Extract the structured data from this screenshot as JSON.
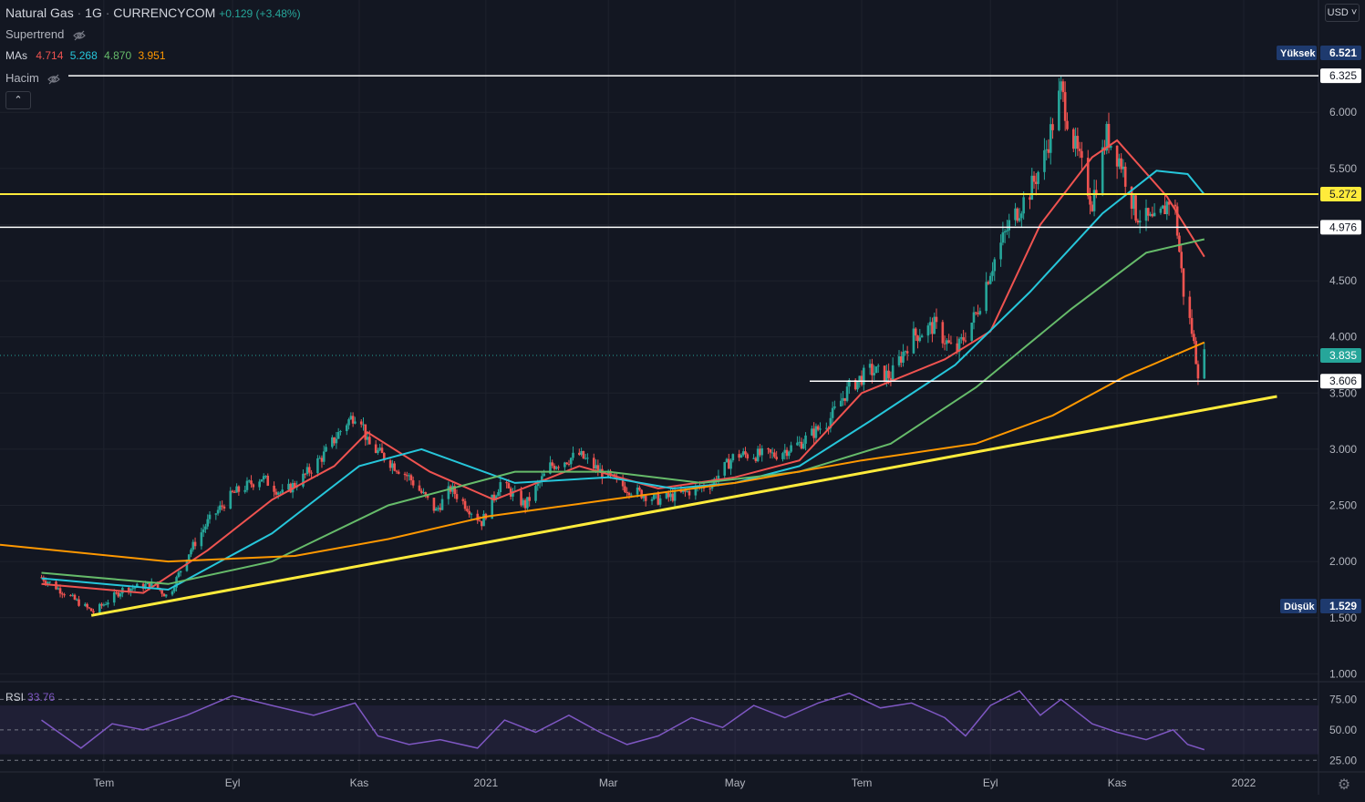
{
  "header": {
    "symbol": "Natural Gas",
    "interval": "1G",
    "exchange": "CURRENCYCOM",
    "change": "+0.129 (+3.48%)"
  },
  "indicators": {
    "supertrend_label": "Supertrend",
    "mas_label": "MAs",
    "mas_values": [
      "4.714",
      "5.268",
      "4.870",
      "3.951"
    ],
    "mas_colors": [
      "#ef5350",
      "#26c6da",
      "#66bb6a",
      "#ff9800"
    ],
    "volume_label": "Hacim",
    "rsi_label": "RSI",
    "rsi_value": "33.76"
  },
  "currency": "USD",
  "colors": {
    "up": "#26a69a",
    "down": "#ef5350",
    "trendline": "#ffeb3b",
    "rsi": "#7e57c2",
    "background": "#131722",
    "grid": "#1e222d"
  },
  "chart_data": {
    "type": "candlestick",
    "y_ticks": [
      1.0,
      1.5,
      2.0,
      2.5,
      3.0,
      3.5,
      4.0,
      4.5,
      5.0,
      5.5,
      6.0
    ],
    "y_tick_labels": [
      "1.000",
      "1.500",
      "2.000",
      "2.500",
      "3.000",
      "3.500",
      "4.000",
      "4.500",
      "5.000",
      "5.500",
      "6.000"
    ],
    "ylim": [
      0.93,
      7.0
    ],
    "x_labels": [
      "Tem",
      "Eyl",
      "Kas",
      "2021",
      "Mar",
      "May",
      "Tem",
      "Eyl",
      "Kas",
      "2022"
    ],
    "x_label_dates": [
      "2020-07-01",
      "2020-09-01",
      "2020-11-01",
      "2021-01-01",
      "2021-03-01",
      "2021-05-01",
      "2021-07-01",
      "2021-09-01",
      "2021-11-01",
      "2022-01-01"
    ],
    "xlim": [
      "2020-05-12",
      "2022-02-06"
    ],
    "price_series": [
      [
        "2020-06-01",
        1.86
      ],
      [
        "2020-06-20",
        1.62
      ],
      [
        "2020-06-26",
        1.55
      ],
      [
        "2020-07-10",
        1.75
      ],
      [
        "2020-07-25",
        1.8
      ],
      [
        "2020-08-01",
        1.68
      ],
      [
        "2020-08-10",
        2.05
      ],
      [
        "2020-08-20",
        2.35
      ],
      [
        "2020-09-01",
        2.6
      ],
      [
        "2020-09-15",
        2.75
      ],
      [
        "2020-09-25",
        2.6
      ],
      [
        "2020-10-05",
        2.75
      ],
      [
        "2020-10-15",
        2.95
      ],
      [
        "2020-10-25",
        3.22
      ],
      [
        "2020-11-01",
        3.35
      ],
      [
        "2020-11-05",
        3.05
      ],
      [
        "2020-11-15",
        2.9
      ],
      [
        "2020-11-25",
        2.75
      ],
      [
        "2020-12-08",
        2.45
      ],
      [
        "2020-12-15",
        2.65
      ],
      [
        "2020-12-30",
        2.35
      ],
      [
        "2021-01-08",
        2.7
      ],
      [
        "2021-01-20",
        2.5
      ],
      [
        "2021-02-01",
        2.85
      ],
      [
        "2021-02-15",
        2.95
      ],
      [
        "2021-02-25",
        2.8
      ],
      [
        "2021-03-10",
        2.65
      ],
      [
        "2021-03-25",
        2.55
      ],
      [
        "2021-04-05",
        2.6
      ],
      [
        "2021-04-20",
        2.7
      ],
      [
        "2021-05-01",
        2.95
      ],
      [
        "2021-05-20",
        2.95
      ],
      [
        "2021-06-01",
        3.05
      ],
      [
        "2021-06-15",
        3.25
      ],
      [
        "2021-06-25",
        3.55
      ],
      [
        "2021-07-05",
        3.7
      ],
      [
        "2021-07-15",
        3.65
      ],
      [
        "2021-07-25",
        4.0
      ],
      [
        "2021-08-05",
        4.1
      ],
      [
        "2021-08-15",
        3.85
      ],
      [
        "2021-08-25",
        4.2
      ],
      [
        "2021-09-01",
        4.6
      ],
      [
        "2021-09-10",
        5.0
      ],
      [
        "2021-09-20",
        5.3
      ],
      [
        "2021-09-27",
        5.6
      ],
      [
        "2021-10-05",
        6.2
      ],
      [
        "2021-10-10",
        5.8
      ],
      [
        "2021-10-20",
        5.2
      ],
      [
        "2021-10-27",
        5.8
      ],
      [
        "2021-11-03",
        5.55
      ],
      [
        "2021-11-10",
        5.1
      ],
      [
        "2021-11-20",
        5.0
      ],
      [
        "2021-11-28",
        5.3
      ],
      [
        "2021-12-03",
        4.4
      ],
      [
        "2021-12-07",
        4.05
      ],
      [
        "2021-12-10",
        3.7
      ],
      [
        "2021-12-13",
        3.835
      ]
    ],
    "moving_averages": [
      {
        "name": "4.714",
        "color": "#ef5350",
        "points": [
          [
            "2020-06-01",
            1.8
          ],
          [
            "2020-07-20",
            1.72
          ],
          [
            "2020-08-20",
            2.1
          ],
          [
            "2020-09-20",
            2.55
          ],
          [
            "2020-10-20",
            2.85
          ],
          [
            "2020-11-05",
            3.15
          ],
          [
            "2020-12-05",
            2.8
          ],
          [
            "2021-01-05",
            2.55
          ],
          [
            "2021-02-15",
            2.85
          ],
          [
            "2021-03-25",
            2.65
          ],
          [
            "2021-05-01",
            2.75
          ],
          [
            "2021-06-01",
            2.9
          ],
          [
            "2021-07-01",
            3.5
          ],
          [
            "2021-08-10",
            3.8
          ],
          [
            "2021-09-01",
            4.05
          ],
          [
            "2021-09-25",
            5.0
          ],
          [
            "2021-10-20",
            5.6
          ],
          [
            "2021-11-01",
            5.75
          ],
          [
            "2021-11-25",
            5.25
          ],
          [
            "2021-12-13",
            4.714
          ]
        ]
      },
      {
        "name": "5.268",
        "color": "#26c6da",
        "points": [
          [
            "2020-06-01",
            1.85
          ],
          [
            "2020-08-01",
            1.75
          ],
          [
            "2020-09-20",
            2.25
          ],
          [
            "2020-11-01",
            2.85
          ],
          [
            "2020-12-01",
            3.0
          ],
          [
            "2021-01-15",
            2.7
          ],
          [
            "2021-03-01",
            2.75
          ],
          [
            "2021-04-01",
            2.65
          ],
          [
            "2021-05-01",
            2.7
          ],
          [
            "2021-06-01",
            2.85
          ],
          [
            "2021-07-05",
            3.25
          ],
          [
            "2021-08-15",
            3.75
          ],
          [
            "2021-09-20",
            4.4
          ],
          [
            "2021-10-25",
            5.1
          ],
          [
            "2021-11-20",
            5.48
          ],
          [
            "2021-12-05",
            5.45
          ],
          [
            "2021-12-13",
            5.268
          ]
        ]
      },
      {
        "name": "4.870",
        "color": "#66bb6a",
        "points": [
          [
            "2020-06-01",
            1.9
          ],
          [
            "2020-08-01",
            1.8
          ],
          [
            "2020-09-20",
            2.0
          ],
          [
            "2020-11-15",
            2.5
          ],
          [
            "2021-01-15",
            2.8
          ],
          [
            "2021-03-01",
            2.8
          ],
          [
            "2021-04-15",
            2.7
          ],
          [
            "2021-06-01",
            2.8
          ],
          [
            "2021-07-15",
            3.05
          ],
          [
            "2021-08-25",
            3.55
          ],
          [
            "2021-10-10",
            4.25
          ],
          [
            "2021-11-15",
            4.75
          ],
          [
            "2021-12-13",
            4.87
          ]
        ]
      },
      {
        "name": "3.951",
        "color": "#ff9800",
        "points": [
          [
            "2020-05-12",
            2.15
          ],
          [
            "2020-08-01",
            2.0
          ],
          [
            "2020-10-01",
            2.05
          ],
          [
            "2020-11-15",
            2.2
          ],
          [
            "2021-01-01",
            2.4
          ],
          [
            "2021-03-01",
            2.55
          ],
          [
            "2021-05-01",
            2.7
          ],
          [
            "2021-07-01",
            2.9
          ],
          [
            "2021-08-25",
            3.05
          ],
          [
            "2021-10-01",
            3.3
          ],
          [
            "2021-11-05",
            3.65
          ],
          [
            "2021-12-13",
            3.951
          ]
        ]
      }
    ],
    "horizontal_lines": [
      {
        "label": "6.325",
        "value": 6.325,
        "color": "#ffffff"
      },
      {
        "label": "5.272",
        "value": 5.272,
        "color": "#ffeb3b"
      },
      {
        "label": "4.976",
        "value": 4.976,
        "color": "#ffffff"
      },
      {
        "label": "3.606",
        "value": 3.606,
        "color": "#ffffff"
      }
    ],
    "trendline": {
      "from": [
        "2020-06-25",
        1.52
      ],
      "to": [
        "2022-01-17",
        3.47
      ],
      "color": "#ffeb3b"
    },
    "high": {
      "label": "Yüksek",
      "value": "6.521"
    },
    "low": {
      "label": "Düşük",
      "value": "1.529"
    },
    "last_price": {
      "label": "3.835",
      "value": 3.835
    },
    "rsi": {
      "levels": [
        25,
        50,
        75
      ],
      "level_labels": [
        "25.00",
        "50.00",
        "75.00"
      ],
      "band": [
        30,
        70
      ],
      "points": [
        [
          "2020-06-01",
          58
        ],
        [
          "2020-06-20",
          35
        ],
        [
          "2020-07-05",
          55
        ],
        [
          "2020-07-20",
          50
        ],
        [
          "2020-08-10",
          62
        ],
        [
          "2020-09-01",
          78
        ],
        [
          "2020-09-20",
          70
        ],
        [
          "2020-10-10",
          62
        ],
        [
          "2020-10-30",
          72
        ],
        [
          "2020-11-10",
          45
        ],
        [
          "2020-11-25",
          38
        ],
        [
          "2020-12-10",
          42
        ],
        [
          "2020-12-28",
          35
        ],
        [
          "2021-01-10",
          58
        ],
        [
          "2021-01-25",
          48
        ],
        [
          "2021-02-10",
          62
        ],
        [
          "2021-02-25",
          48
        ],
        [
          "2021-03-10",
          38
        ],
        [
          "2021-03-25",
          45
        ],
        [
          "2021-04-10",
          60
        ],
        [
          "2021-04-25",
          52
        ],
        [
          "2021-05-10",
          70
        ],
        [
          "2021-05-25",
          60
        ],
        [
          "2021-06-10",
          72
        ],
        [
          "2021-06-25",
          80
        ],
        [
          "2021-07-10",
          68
        ],
        [
          "2021-07-25",
          72
        ],
        [
          "2021-08-10",
          60
        ],
        [
          "2021-08-20",
          45
        ],
        [
          "2021-09-01",
          70
        ],
        [
          "2021-09-15",
          82
        ],
        [
          "2021-09-25",
          62
        ],
        [
          "2021-10-05",
          75
        ],
        [
          "2021-10-20",
          55
        ],
        [
          "2021-11-01",
          48
        ],
        [
          "2021-11-15",
          42
        ],
        [
          "2021-11-28",
          50
        ],
        [
          "2021-12-05",
          38
        ],
        [
          "2021-12-13",
          33.76
        ]
      ]
    }
  }
}
